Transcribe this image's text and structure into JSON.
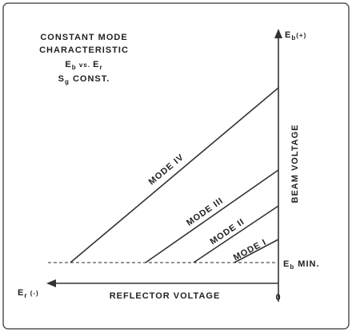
{
  "title": [
    "CONSTANT MODE",
    "CHARACTERISTIC"
  ],
  "relation": [
    "E",
    "b",
    " vs. ",
    "E",
    "r"
  ],
  "condition": [
    "S",
    "g",
    " CONST."
  ],
  "y_axis": {
    "top": [
      "E",
      "b",
      "(+)"
    ],
    "label": "BEAM VOLTAGE",
    "min": [
      "E",
      "b",
      " MIN."
    ]
  },
  "x_axis": {
    "end": [
      "E",
      "r",
      " (-)"
    ],
    "label": "REFLECTOR VOLTAGE",
    "origin": "0"
  },
  "modes": [
    "MODE IV",
    "MODE III",
    "MODE II",
    "MODE I"
  ]
}
